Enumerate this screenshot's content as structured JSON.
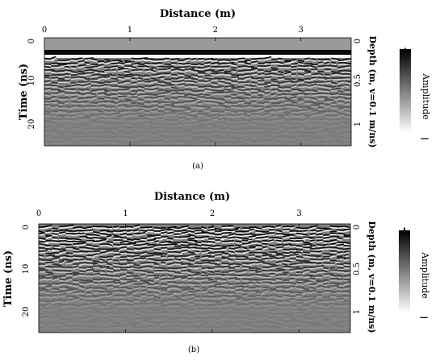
{
  "figure": {
    "panels": [
      {
        "id": "a",
        "caption": "(a)",
        "x_axis_label": "Distance (m)",
        "y_axis_label": "Time (ns)",
        "right_axis_label": "Depth (m, v=0.1 m/ns)",
        "colorbar_label": "Amplitude",
        "colorbar_plus": "+",
        "colorbar_minus": "−",
        "x_ticks": [
          "0",
          "1",
          "2",
          "3"
        ],
        "time_ticks": [
          "0",
          "10",
          "20"
        ],
        "depth_ticks": [
          "0",
          "0.5",
          "1"
        ],
        "direct_wave_present": true
      },
      {
        "id": "b",
        "caption": "(b)",
        "x_axis_label": "Distance (m)",
        "y_axis_label": "Time (ns)",
        "right_axis_label": "Depth (m, v=0.1 m/ns)",
        "colorbar_label": "Amplitude",
        "colorbar_plus": "+",
        "colorbar_minus": "−",
        "x_ticks": [
          "0",
          "1",
          "2",
          "3"
        ],
        "time_ticks": [
          "0",
          "10",
          "20"
        ],
        "depth_ticks": [
          "0",
          "0.5",
          "1"
        ],
        "direct_wave_present": false
      }
    ],
    "x_tick_values": [
      0,
      1,
      2,
      3
    ],
    "x_range": [
      0,
      3.5
    ],
    "time_tick_values": [
      0,
      10,
      20
    ],
    "time_range": [
      0,
      25
    ],
    "depth_tick_values": [
      0,
      0.5,
      1
    ],
    "depth_range": [
      0,
      1.25
    ],
    "colormap": "grayscale",
    "colors": {
      "positive": "#000000",
      "negative": "#ffffff",
      "neutral": "#808080"
    }
  }
}
